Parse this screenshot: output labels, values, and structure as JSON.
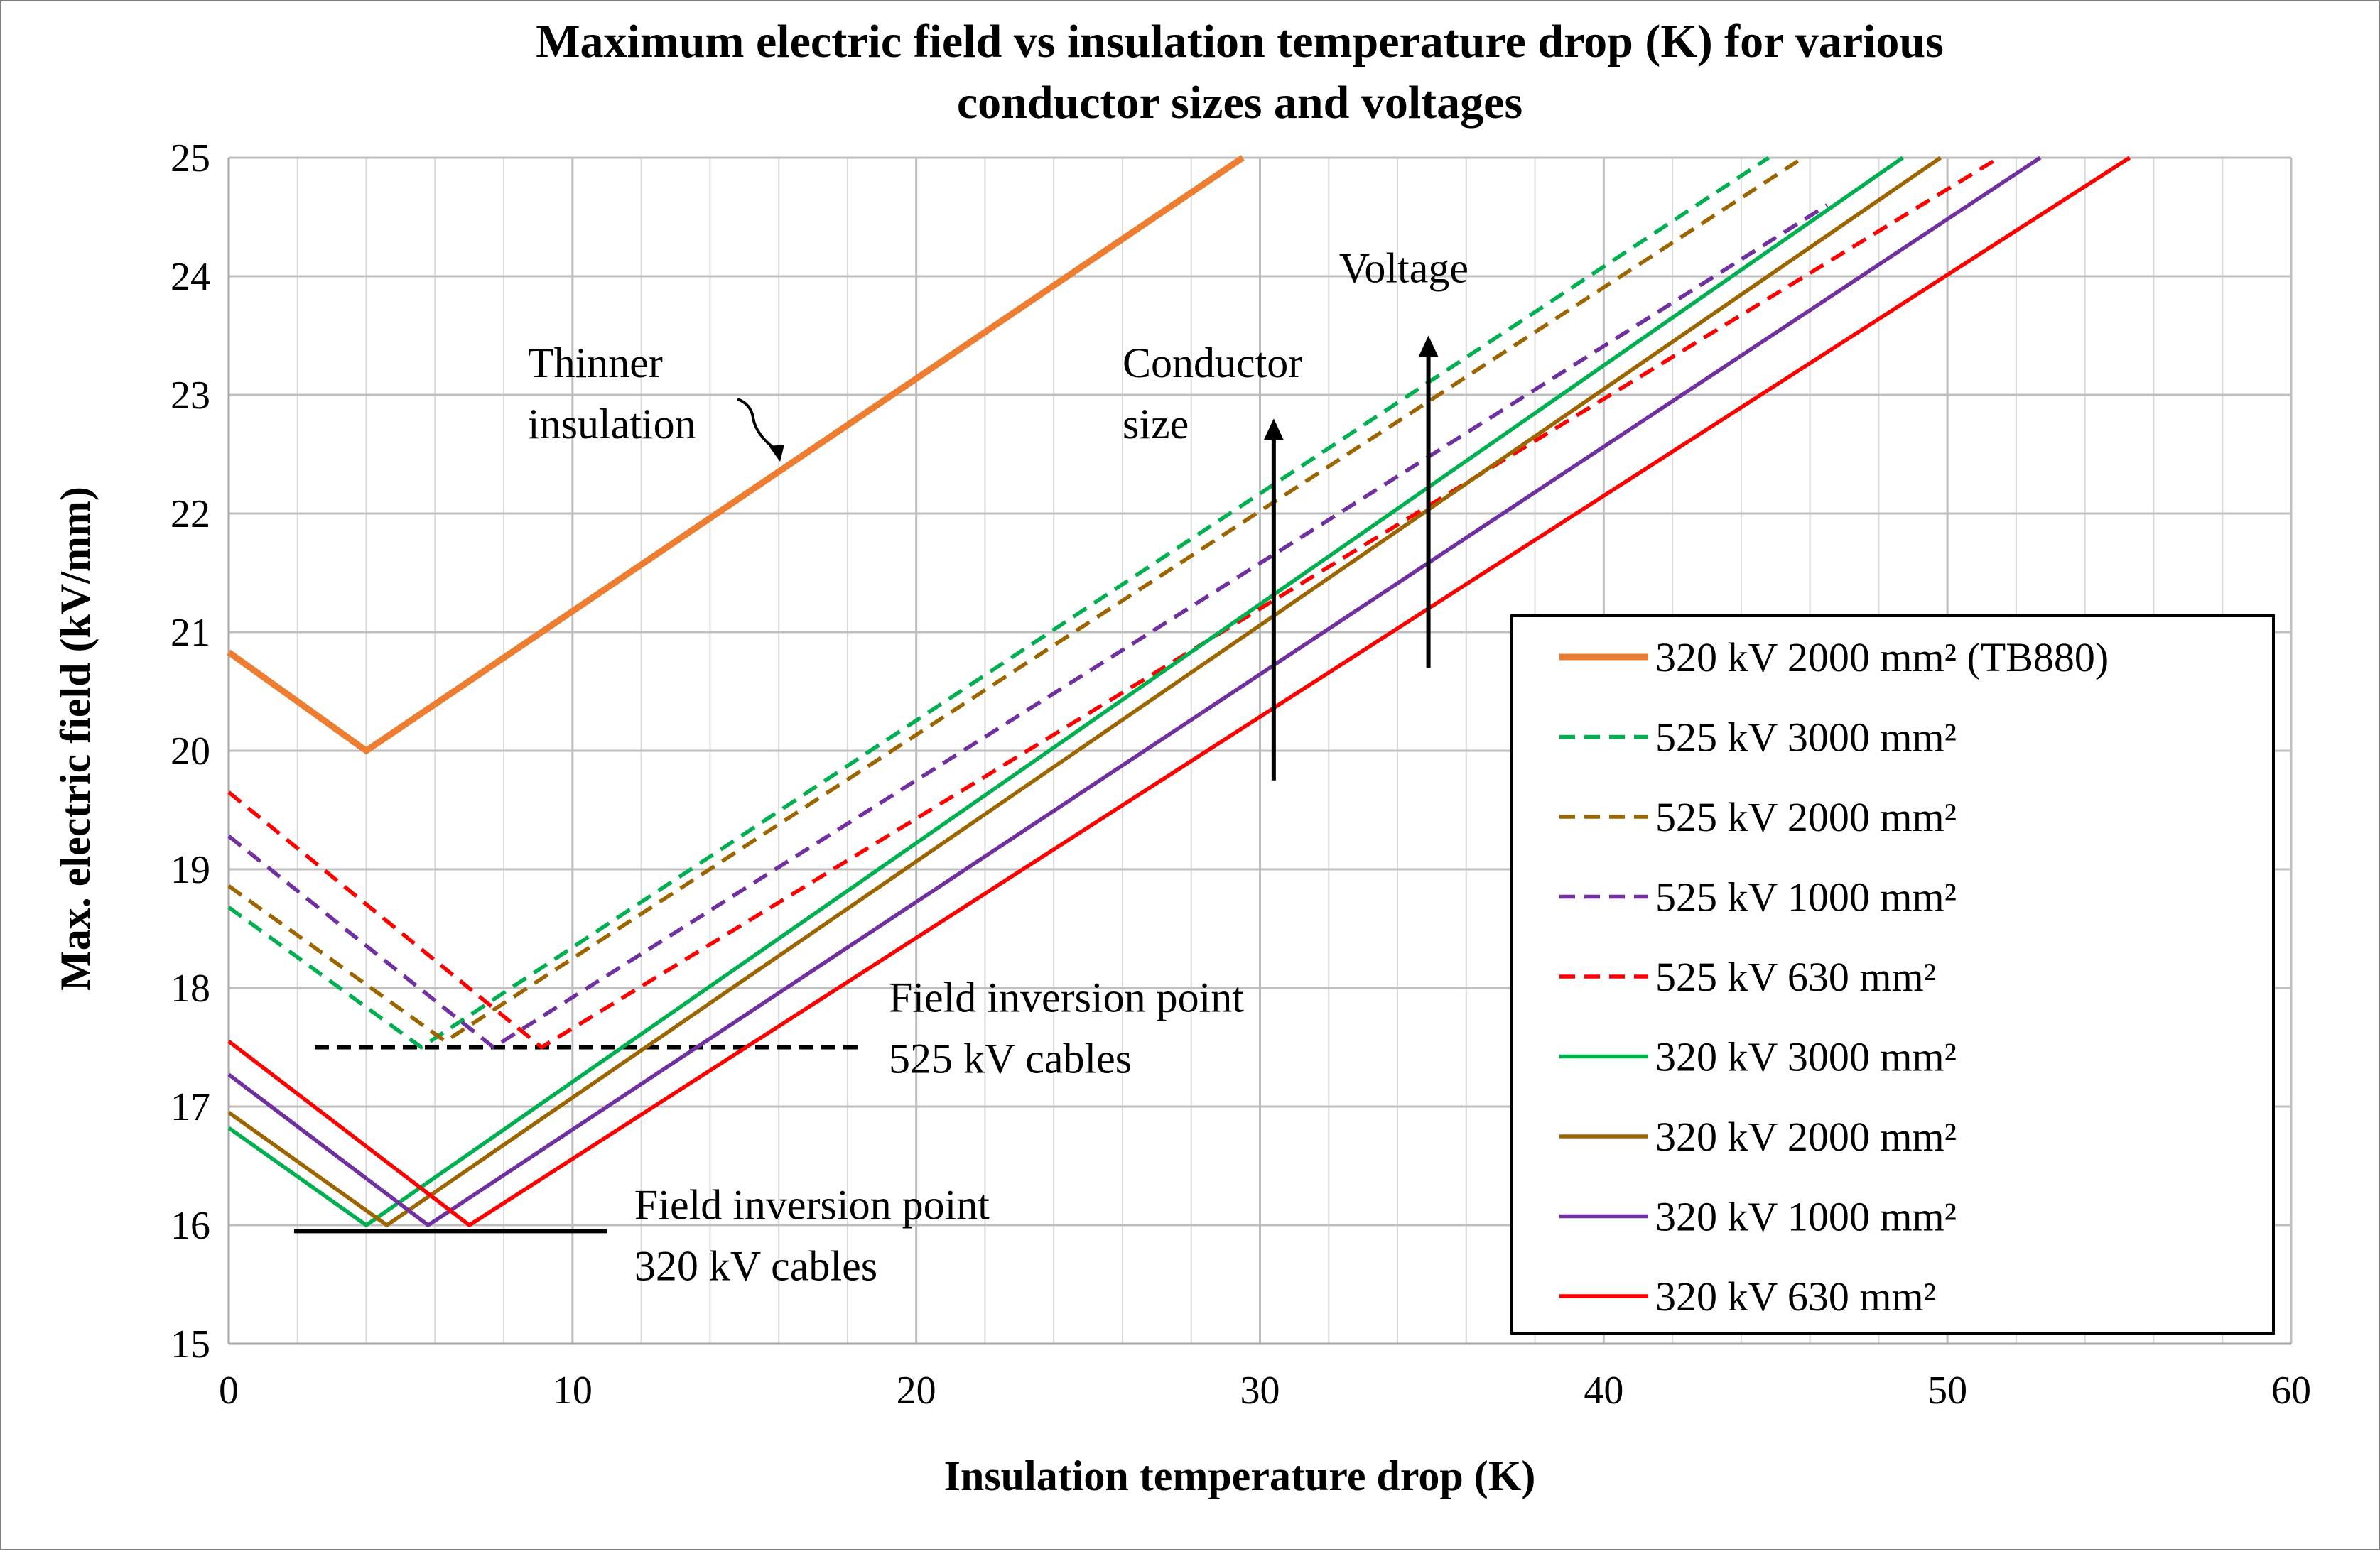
{
  "chart_data": {
    "type": "line",
    "title": [
      "Maximum electric field vs insulation temperature drop (K) for various",
      "conductor sizes and voltages"
    ],
    "xlabel": "Insulation temperature drop (K)",
    "ylabel": "Max. electric field (kV/mm)",
    "xlim": [
      0,
      60
    ],
    "ylim": [
      15,
      25
    ],
    "x_ticks": [
      0,
      10,
      20,
      30,
      40,
      50,
      60
    ],
    "y_ticks": [
      15,
      16,
      17,
      18,
      19,
      20,
      21,
      22,
      23,
      24,
      25
    ],
    "grid": true,
    "legend_position": "right",
    "series": [
      {
        "name": "320 kV 2000 mm² (TB880)",
        "color": "#ED7D31",
        "dash": "solid",
        "heavy": true,
        "x": [
          0,
          4,
          29.5
        ],
        "values": [
          20.83,
          20.0,
          25.0
        ]
      },
      {
        "name": "525 kV 3000 mm²",
        "color": "#00B050",
        "dash": "dashed",
        "x": [
          0,
          5.6,
          44.8
        ],
        "values": [
          18.68,
          17.5,
          25.0
        ]
      },
      {
        "name": "525 kV 2000 mm²",
        "color": "#9C6500",
        "dash": "dashed",
        "x": [
          0,
          6.3,
          45.8
        ],
        "values": [
          18.86,
          17.55,
          25.0
        ]
      },
      {
        "name": "525 kV 1000 mm²",
        "color": "#7030A0",
        "dash": "dashed",
        "x": [
          0,
          7.7,
          46.5
        ],
        "values": [
          19.28,
          17.5,
          24.6
        ]
      },
      {
        "name": "525 kV 630 mm²",
        "color": "#FF0000",
        "dash": "dashed",
        "x": [
          0,
          9.1,
          51.5
        ],
        "values": [
          19.65,
          17.5,
          25.0
        ]
      },
      {
        "name": "320 kV 3000 mm²",
        "color": "#00B050",
        "dash": "solid",
        "x": [
          0,
          4.0,
          48.7
        ],
        "values": [
          16.82,
          16.0,
          25.0
        ]
      },
      {
        "name": "320 kV 2000 mm²",
        "color": "#9C6500",
        "dash": "solid",
        "x": [
          0,
          4.6,
          49.8
        ],
        "values": [
          16.95,
          16.0,
          25.0
        ]
      },
      {
        "name": "320 kV 1000 mm²",
        "color": "#7030A0",
        "dash": "solid",
        "x": [
          0,
          5.8,
          52.7
        ],
        "values": [
          17.27,
          16.0,
          25.0
        ]
      },
      {
        "name": "320 kV 630 mm²",
        "color": "#FF0000",
        "dash": "solid",
        "x": [
          0,
          7.0,
          55.3
        ],
        "values": [
          17.55,
          16.0,
          25.0
        ]
      }
    ],
    "reference_lines": [
      {
        "name": "field-inversion-525",
        "x": [
          2.5,
          18.3
        ],
        "y": [
          17.5,
          17.5
        ],
        "dash": "dashed"
      },
      {
        "name": "field-inversion-320",
        "x": [
          1.9,
          11.0
        ],
        "y": [
          15.95,
          15.95
        ],
        "dash": "solid"
      }
    ],
    "arrows": [
      {
        "name": "conductor-size-arrow",
        "x": 30.4,
        "y_from": 19.75,
        "y_to": 22.8
      },
      {
        "name": "voltage-arrow",
        "x": 34.9,
        "y_from": 20.7,
        "y_to": 23.5
      }
    ],
    "annotations": [
      {
        "name": "thinner-insulation",
        "lines": [
          "Thinner",
          "insulation"
        ],
        "x": 8.7,
        "y": 23.15
      },
      {
        "name": "conductor-size",
        "lines": [
          "Conductor",
          "size"
        ],
        "x": 26.0,
        "y": 23.15
      },
      {
        "name": "voltage",
        "lines": [
          "Voltage"
        ],
        "x": 32.3,
        "y": 23.95
      },
      {
        "name": "field-inversion-525-label",
        "lines": [
          "Field inversion point",
          "525 kV cables"
        ],
        "x": 19.2,
        "y": 17.8
      },
      {
        "name": "field-inversion-320-label",
        "lines": [
          "Field inversion point",
          "320 kV cables"
        ],
        "x": 11.8,
        "y": 16.05
      }
    ]
  }
}
